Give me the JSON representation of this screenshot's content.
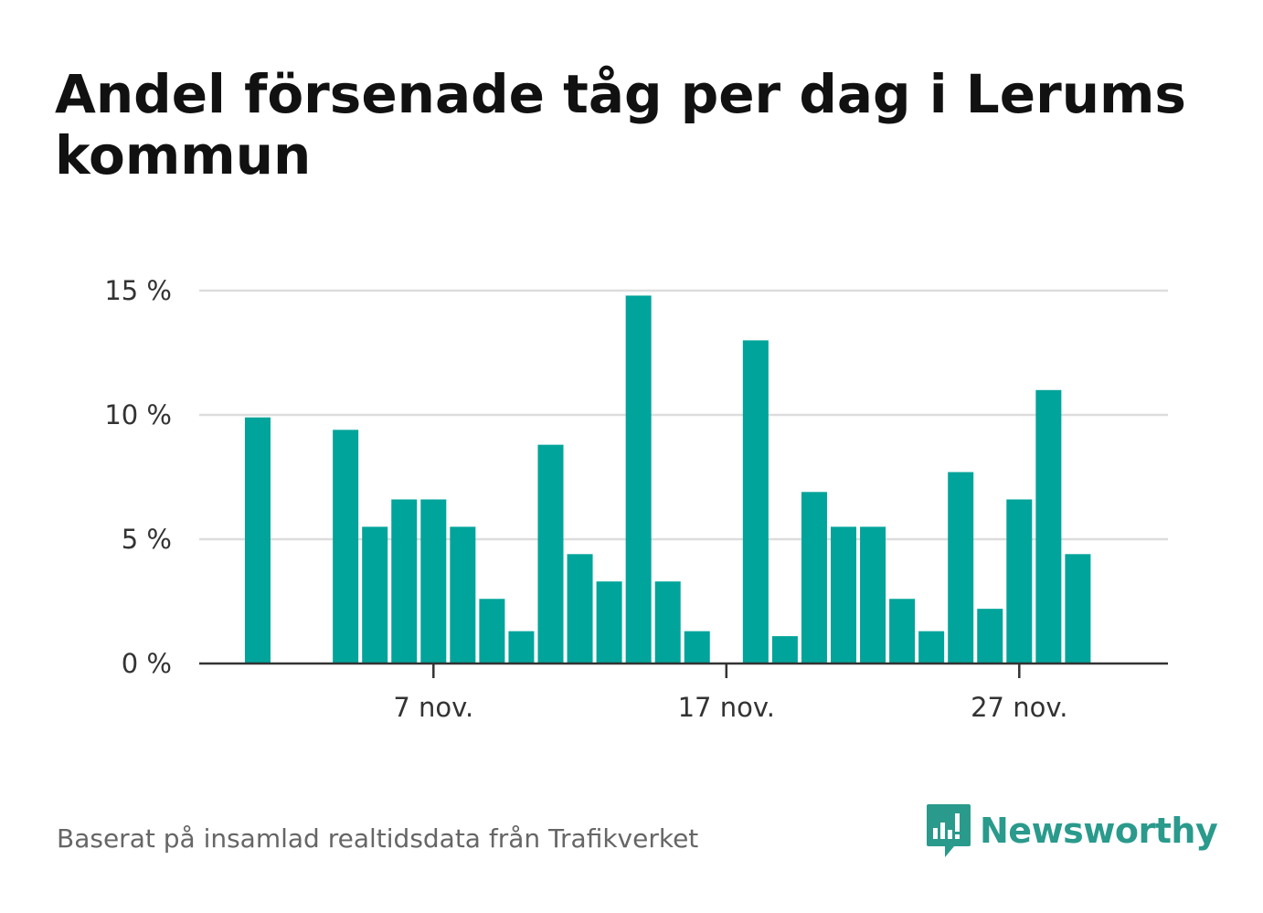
{
  "chart_data": {
    "type": "bar",
    "title": "Andel försenade tåg per dag i Lerums kommun",
    "xlabel": "",
    "ylabel": "",
    "categories": [
      "1 nov.",
      "2 nov.",
      "3 nov.",
      "4 nov.",
      "5 nov.",
      "6 nov.",
      "7 nov.",
      "8 nov.",
      "9 nov.",
      "10 nov.",
      "11 nov.",
      "12 nov.",
      "13 nov.",
      "14 nov.",
      "15 nov.",
      "16 nov.",
      "17 nov.",
      "18 nov.",
      "19 nov.",
      "20 nov.",
      "21 nov.",
      "22 nov.",
      "23 nov.",
      "24 nov.",
      "25 nov.",
      "26 nov.",
      "27 nov.",
      "28 nov.",
      "29 nov."
    ],
    "values": [
      9.9,
      0,
      0,
      9.4,
      5.5,
      6.6,
      6.6,
      5.5,
      2.6,
      1.3,
      8.8,
      4.4,
      3.3,
      14.8,
      3.3,
      1.3,
      0,
      13.0,
      1.1,
      6.9,
      5.5,
      5.5,
      2.6,
      1.3,
      7.7,
      2.2,
      6.6,
      11.0,
      4.4
    ],
    "ylim": [
      0,
      15
    ],
    "yticks": [
      0,
      5,
      10,
      15
    ],
    "ytick_labels": [
      "0 %",
      "5 %",
      "10 %",
      "15 %"
    ],
    "xticks": [
      "7 nov.",
      "17 nov.",
      "27 nov."
    ],
    "xtick_indices": [
      6,
      16,
      26
    ],
    "grid": true,
    "bar_color": "#00a49a"
  },
  "footer": {
    "source": "Baserat på insamlad realtidsdata från Trafikverket",
    "brand": "Newsworthy",
    "brand_icon": "newsworthy-logo-icon",
    "brand_color": "#2a9a8c"
  }
}
